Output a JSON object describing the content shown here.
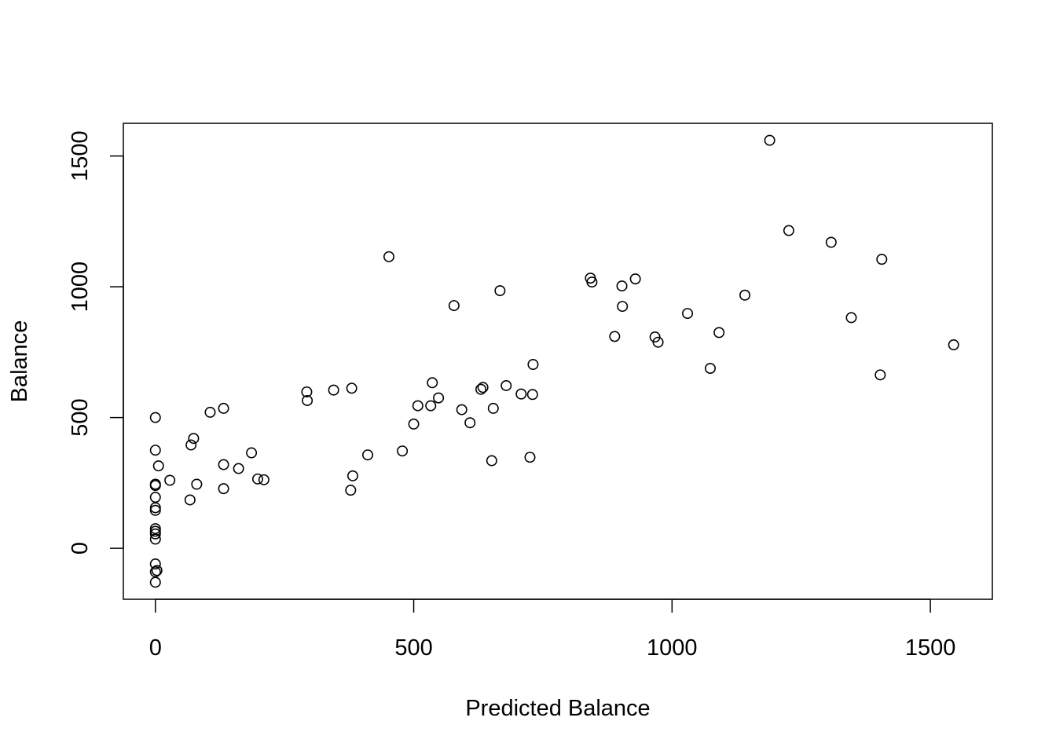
{
  "chart_data": {
    "type": "scatter",
    "title": "",
    "xlabel": "Predicted Balance",
    "ylabel": "Balance",
    "xlim": [
      -62,
      1620
    ],
    "ylim": [
      -195,
      1625
    ],
    "xticks": [
      0,
      500,
      1000,
      1500
    ],
    "yticks": [
      0,
      500,
      1000,
      1500
    ],
    "xtick_labels": [
      "0",
      "500",
      "1000",
      "1500"
    ],
    "ytick_labels": [
      "0",
      "500",
      "1000",
      "1500"
    ],
    "grid": false,
    "point_style": "open-circle",
    "points": [
      {
        "x": 0,
        "y": 500
      },
      {
        "x": 0,
        "y": 375
      },
      {
        "x": 0,
        "y": 245
      },
      {
        "x": 0,
        "y": 240
      },
      {
        "x": 0,
        "y": 195
      },
      {
        "x": 0,
        "y": 155
      },
      {
        "x": 0,
        "y": 145
      },
      {
        "x": 0,
        "y": 75
      },
      {
        "x": 0,
        "y": 65
      },
      {
        "x": 0,
        "y": 55
      },
      {
        "x": 0,
        "y": 35
      },
      {
        "x": 0,
        "y": -60
      },
      {
        "x": 0,
        "y": -90
      },
      {
        "x": 0,
        "y": -130
      },
      {
        "x": 3,
        "y": -85
      },
      {
        "x": 6,
        "y": 315
      },
      {
        "x": 28,
        "y": 260
      },
      {
        "x": 67,
        "y": 185
      },
      {
        "x": 69,
        "y": 395
      },
      {
        "x": 74,
        "y": 420
      },
      {
        "x": 80,
        "y": 245
      },
      {
        "x": 106,
        "y": 520
      },
      {
        "x": 132,
        "y": 535
      },
      {
        "x": 132,
        "y": 320
      },
      {
        "x": 132,
        "y": 228
      },
      {
        "x": 161,
        "y": 305
      },
      {
        "x": 186,
        "y": 365
      },
      {
        "x": 198,
        "y": 265
      },
      {
        "x": 210,
        "y": 262
      },
      {
        "x": 293,
        "y": 598
      },
      {
        "x": 294,
        "y": 565
      },
      {
        "x": 345,
        "y": 605
      },
      {
        "x": 378,
        "y": 222
      },
      {
        "x": 380,
        "y": 612
      },
      {
        "x": 382,
        "y": 277
      },
      {
        "x": 411,
        "y": 357
      },
      {
        "x": 452,
        "y": 1115
      },
      {
        "x": 478,
        "y": 372
      },
      {
        "x": 500,
        "y": 475
      },
      {
        "x": 508,
        "y": 545
      },
      {
        "x": 533,
        "y": 545
      },
      {
        "x": 536,
        "y": 633
      },
      {
        "x": 548,
        "y": 575
      },
      {
        "x": 578,
        "y": 928
      },
      {
        "x": 593,
        "y": 530
      },
      {
        "x": 609,
        "y": 480
      },
      {
        "x": 630,
        "y": 608
      },
      {
        "x": 634,
        "y": 615
      },
      {
        "x": 651,
        "y": 335
      },
      {
        "x": 654,
        "y": 535
      },
      {
        "x": 667,
        "y": 985
      },
      {
        "x": 679,
        "y": 622
      },
      {
        "x": 708,
        "y": 590
      },
      {
        "x": 725,
        "y": 348
      },
      {
        "x": 730,
        "y": 588
      },
      {
        "x": 731,
        "y": 703
      },
      {
        "x": 842,
        "y": 1033
      },
      {
        "x": 845,
        "y": 1018
      },
      {
        "x": 889,
        "y": 810
      },
      {
        "x": 903,
        "y": 1003
      },
      {
        "x": 904,
        "y": 925
      },
      {
        "x": 929,
        "y": 1030
      },
      {
        "x": 967,
        "y": 808
      },
      {
        "x": 973,
        "y": 788
      },
      {
        "x": 1030,
        "y": 898
      },
      {
        "x": 1074,
        "y": 688
      },
      {
        "x": 1091,
        "y": 825
      },
      {
        "x": 1141,
        "y": 968
      },
      {
        "x": 1189,
        "y": 1560
      },
      {
        "x": 1226,
        "y": 1215
      },
      {
        "x": 1308,
        "y": 1170
      },
      {
        "x": 1347,
        "y": 882
      },
      {
        "x": 1403,
        "y": 663
      },
      {
        "x": 1406,
        "y": 1105
      },
      {
        "x": 1545,
        "y": 778
      }
    ]
  }
}
